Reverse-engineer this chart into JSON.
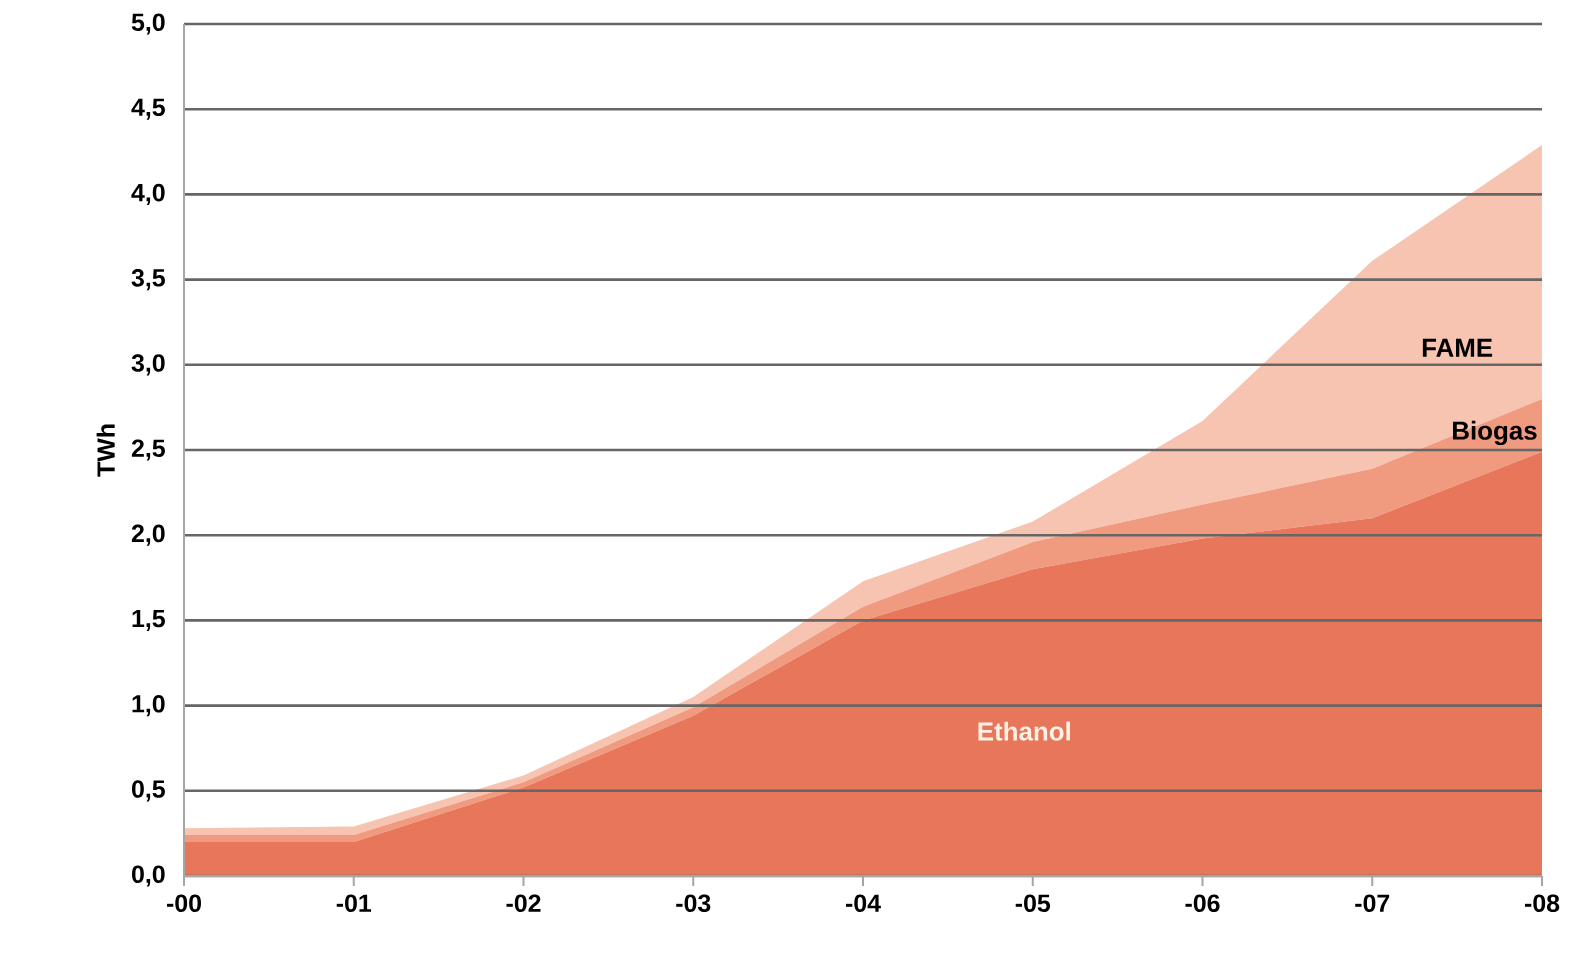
{
  "chart_data": {
    "type": "area",
    "stacked": true,
    "ylabel": "TWh",
    "categories": [
      "-00",
      "-01",
      "-02",
      "-03",
      "-04",
      "-05",
      "-06",
      "-07",
      "-08"
    ],
    "series": [
      {
        "name": "Ethanol",
        "color": "#e8765a",
        "values": [
          0.2,
          0.2,
          0.52,
          0.94,
          1.5,
          1.8,
          1.98,
          2.1,
          2.49
        ]
      },
      {
        "name": "Biogas",
        "color": "#f09a80",
        "values": [
          0.04,
          0.04,
          0.03,
          0.05,
          0.08,
          0.16,
          0.2,
          0.29,
          0.31
        ]
      },
      {
        "name": "FAME",
        "color": "#f7c4b2",
        "values": [
          0.04,
          0.05,
          0.04,
          0.06,
          0.15,
          0.12,
          0.49,
          1.22,
          1.49
        ]
      }
    ],
    "ylim": [
      0,
      5
    ],
    "yticks": [
      {
        "value": 0,
        "label": "0,0"
      },
      {
        "value": 0.5,
        "label": "0,5"
      },
      {
        "value": 1,
        "label": "1,0"
      },
      {
        "value": 1.5,
        "label": "1,5"
      },
      {
        "value": 2,
        "label": "2,0"
      },
      {
        "value": 2.5,
        "label": "2,5"
      },
      {
        "value": 3,
        "label": "3,0"
      },
      {
        "value": 3.5,
        "label": "3,5"
      },
      {
        "value": 4,
        "label": "4,0"
      },
      {
        "value": 4.5,
        "label": "4,5"
      },
      {
        "value": 5,
        "label": "5,0"
      }
    ],
    "grid": "y"
  }
}
